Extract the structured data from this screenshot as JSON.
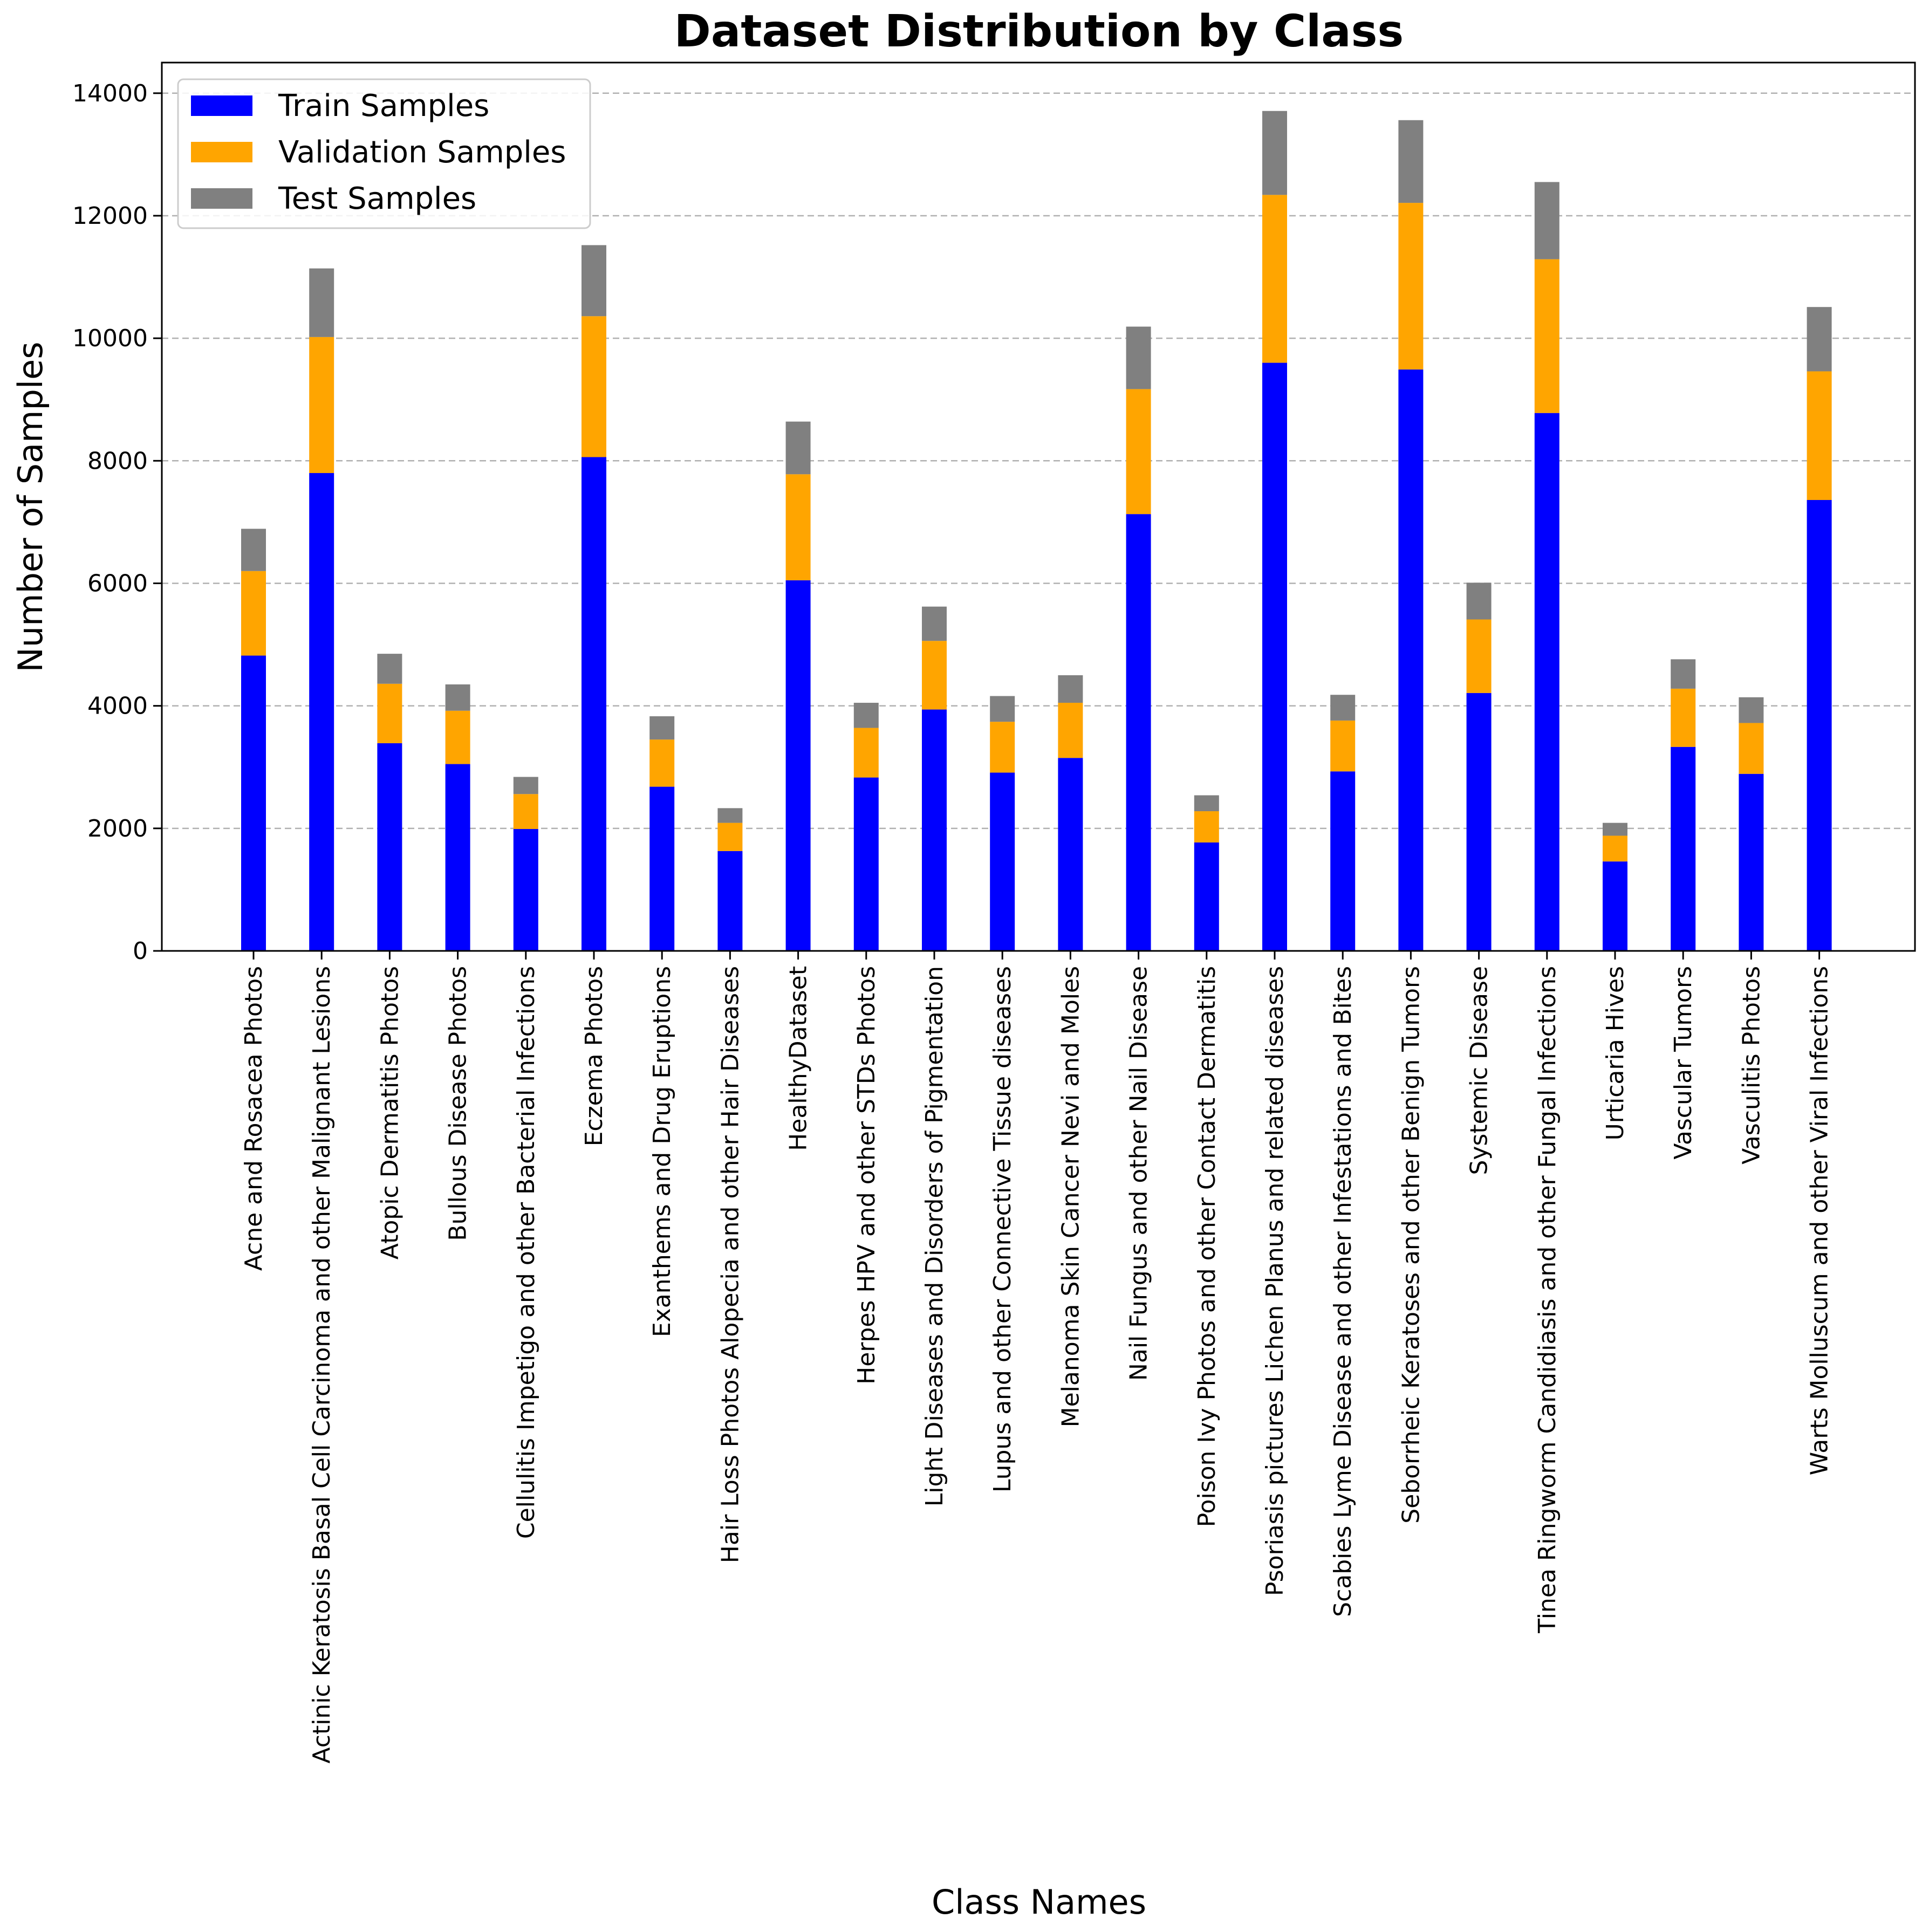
{
  "chart_data": {
    "type": "bar",
    "stacked": true,
    "title": "Dataset Distribution by Class",
    "xlabel": "Class Names",
    "ylabel": "Number of Samples",
    "ylim": [
      0,
      14500
    ],
    "yticks": [
      0,
      2000,
      4000,
      6000,
      8000,
      10000,
      12000,
      14000
    ],
    "grid": "y-dashed",
    "legend_position": "top-left",
    "categories": [
      "Acne and Rosacea Photos",
      "Actinic Keratosis Basal Cell Carcinoma and other Malignant Lesions",
      "Atopic Dermatitis Photos",
      "Bullous Disease Photos",
      "Cellulitis Impetigo and other Bacterial Infections",
      "Eczema Photos",
      "Exanthems and Drug Eruptions",
      "Hair Loss Photos Alopecia and other Hair Diseases",
      "HealthyDataset",
      "Herpes HPV and other STDs Photos",
      "Light Diseases and Disorders of Pigmentation",
      "Lupus and other Connective Tissue diseases",
      "Melanoma Skin Cancer Nevi and Moles",
      "Nail Fungus and other Nail Disease",
      "Poison Ivy Photos and other Contact Dermatitis",
      "Psoriasis pictures Lichen Planus and related diseases",
      "Scabies Lyme Disease and other Infestations and Bites",
      "Seborrheic Keratoses and other Benign Tumors",
      "Systemic Disease",
      "Tinea Ringworm Candidiasis and other Fungal Infections",
      "Urticaria Hives",
      "Vascular Tumors",
      "Vasculitis Photos",
      "Warts Molluscum and other Viral Infections"
    ],
    "series": [
      {
        "name": "Train Samples",
        "color": "#0000ff",
        "values": [
          4820,
          7800,
          3390,
          3050,
          1990,
          8060,
          2680,
          1630,
          6050,
          2830,
          3940,
          2910,
          3150,
          7130,
          1770,
          9600,
          2930,
          9490,
          4210,
          8780,
          1460,
          3330,
          2890,
          7360
        ]
      },
      {
        "name": "Validation Samples",
        "color": "#ffa500",
        "values": [
          1380,
          2220,
          970,
          870,
          570,
          2300,
          770,
          460,
          1730,
          810,
          1120,
          830,
          900,
          2040,
          510,
          2740,
          830,
          2720,
          1200,
          2510,
          420,
          950,
          830,
          2100
        ]
      },
      {
        "name": "Test Samples",
        "color": "#808080",
        "values": [
          690,
          1120,
          490,
          430,
          280,
          1160,
          380,
          240,
          860,
          410,
          560,
          420,
          450,
          1020,
          260,
          1370,
          420,
          1350,
          600,
          1260,
          210,
          480,
          420,
          1050
        ]
      }
    ]
  }
}
